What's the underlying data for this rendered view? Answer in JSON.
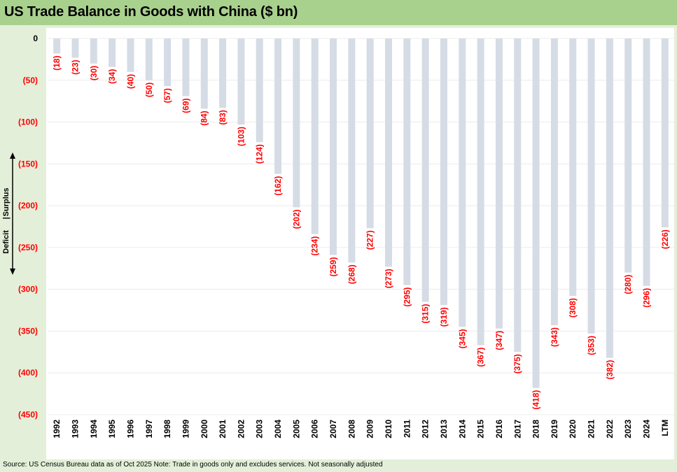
{
  "title": "US Trade Balance in Goods with China ($ bn)",
  "source": "Source: US Census Bureau data as of Oct 2025 Note: Trade in goods only and excludes services. Not seasonally adjusted",
  "colors": {
    "bar": "#d6dce5",
    "negative_label": "#ff0000",
    "header_bg": "#a9d18e",
    "page_bg": "#e4efd9"
  },
  "chart_data": {
    "type": "bar",
    "title": "US Trade Balance in Goods with China ($ bn)",
    "xlabel": "",
    "ylabel": "",
    "ylim": [
      -450,
      0
    ],
    "yticks": [
      0,
      -50,
      -100,
      -150,
      -200,
      -250,
      -300,
      -350,
      -400,
      -450
    ],
    "ytick_labels": [
      "0",
      "(50)",
      "(100)",
      "(150)",
      "(200)",
      "(250)",
      "(300)",
      "(350)",
      "(400)",
      "(450)"
    ],
    "grid": true,
    "categories": [
      "1992",
      "1993",
      "1994",
      "1995",
      "1996",
      "1997",
      "1998",
      "1999",
      "2000",
      "2001",
      "2002",
      "2003",
      "2004",
      "2005",
      "2006",
      "2007",
      "2008",
      "2009",
      "2010",
      "2011",
      "2012",
      "2013",
      "2014",
      "2015",
      "2016",
      "2017",
      "2018",
      "2019",
      "2020",
      "2021",
      "2022",
      "2023",
      "2024",
      "LTM"
    ],
    "values": [
      -18,
      -23,
      -30,
      -34,
      -40,
      -50,
      -57,
      -69,
      -84,
      -83,
      -103,
      -124,
      -162,
      -202,
      -234,
      -259,
      -268,
      -227,
      -273,
      -295,
      -315,
      -319,
      -345,
      -367,
      -347,
      -375,
      -418,
      -343,
      -308,
      -353,
      -382,
      -280,
      -296,
      -226
    ],
    "data_labels": [
      "(18)",
      "(23)",
      "(30)",
      "(34)",
      "(40)",
      "(50)",
      "(57)",
      "(69)",
      "(84)",
      "(83)",
      "(103)",
      "(124)",
      "(162)",
      "(202)",
      "(234)",
      "(259)",
      "(268)",
      "(227)",
      "(273)",
      "(295)",
      "(315)",
      "(319)",
      "(345)",
      "(367)",
      "(347)",
      "(375)",
      "(418)",
      "(343)",
      "(308)",
      "(353)",
      "(382)",
      "(280)",
      "(296)",
      "(226)"
    ],
    "annotation": {
      "up_label": "Surplus",
      "down_label": "Deficit",
      "separator": "|"
    }
  }
}
